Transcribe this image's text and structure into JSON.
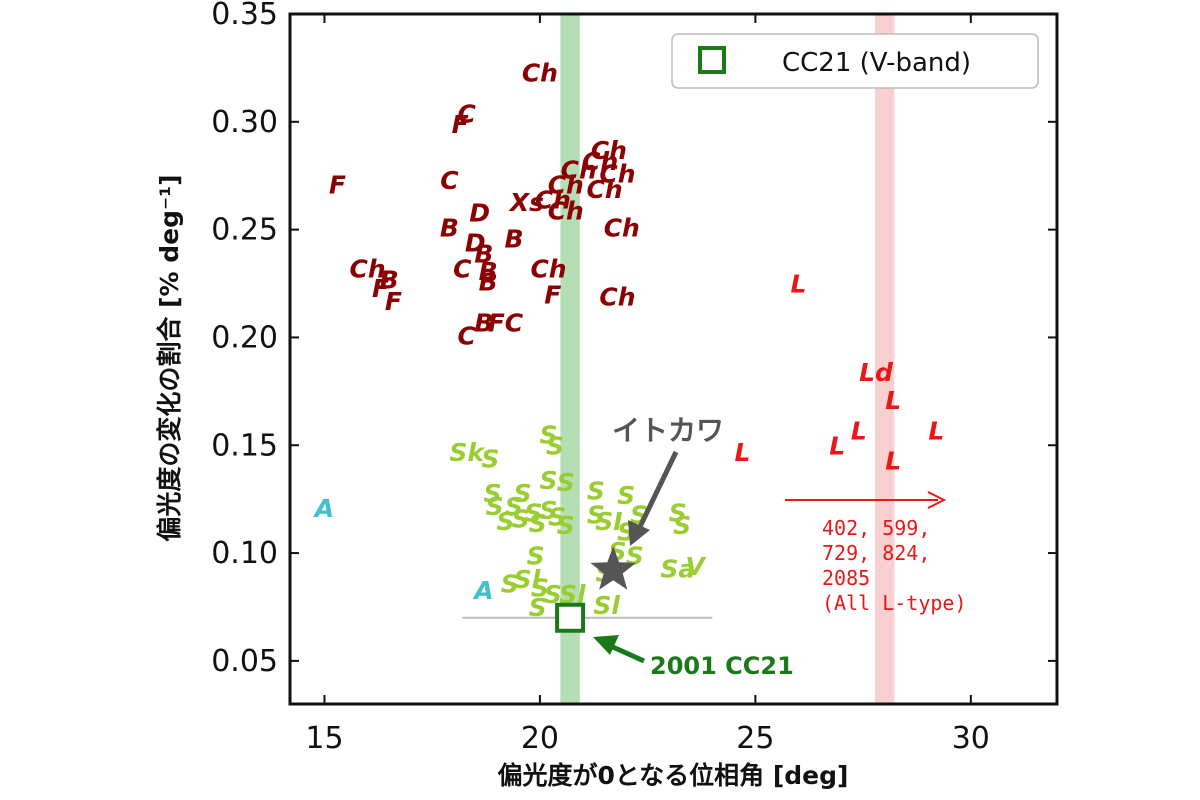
{
  "chart_data": {
    "type": "scatter",
    "title": "",
    "xlabel": "偏光度が0となる位相角 [deg]",
    "ylabel": "偏光度の変化の割合 [% deg⁻¹]",
    "xlim": [
      14.2,
      32
    ],
    "ylim": [
      0.03,
      0.35
    ],
    "xticks": [
      "15",
      "20",
      "25",
      "30"
    ],
    "yticks": [
      "0.05",
      "0.10",
      "0.15",
      "0.20",
      "0.25",
      "0.30",
      "0.35"
    ],
    "grid": false,
    "legend": {
      "placement": "top-right",
      "entries": [
        {
          "label": "CC21 (V-band)"
        }
      ]
    },
    "colors": {
      "c_complex": "#8b0000",
      "s_complex": "#9acd32",
      "a_type": "#40c0c8",
      "l_type": "#e81818",
      "cc21": "#1a7a1a",
      "itokawa": "#555555"
    },
    "bands": [
      {
        "x_center": 20.7,
        "x_width": 0.45,
        "color": "#a8d8a8"
      },
      {
        "x_center": 28.0,
        "x_width": 0.45,
        "color": "#f8c8c8"
      }
    ],
    "hline": {
      "y": 0.07,
      "x_from": 18.2,
      "x_to": 24.0,
      "color": "#bbbbbb"
    },
    "series": [
      {
        "group": "c_complex",
        "points": [
          {
            "x": 20.0,
            "y": 0.322,
            "t": "Ch"
          },
          {
            "x": 18.3,
            "y": 0.303,
            "t": "C"
          },
          {
            "x": 18.15,
            "y": 0.298,
            "t": "F"
          },
          {
            "x": 15.3,
            "y": 0.27,
            "t": "F"
          },
          {
            "x": 17.9,
            "y": 0.272,
            "t": "C"
          },
          {
            "x": 21.6,
            "y": 0.286,
            "t": "Ch"
          },
          {
            "x": 21.4,
            "y": 0.281,
            "t": "Ch"
          },
          {
            "x": 21.8,
            "y": 0.275,
            "t": "Ch"
          },
          {
            "x": 20.9,
            "y": 0.277,
            "t": "Ch"
          },
          {
            "x": 20.6,
            "y": 0.27,
            "t": "Ch"
          },
          {
            "x": 21.5,
            "y": 0.268,
            "t": "Ch"
          },
          {
            "x": 19.7,
            "y": 0.262,
            "t": "Xs"
          },
          {
            "x": 20.3,
            "y": 0.263,
            "t": "Ch"
          },
          {
            "x": 20.6,
            "y": 0.258,
            "t": "Ch"
          },
          {
            "x": 18.6,
            "y": 0.257,
            "t": "D"
          },
          {
            "x": 21.9,
            "y": 0.25,
            "t": "Ch"
          },
          {
            "x": 17.9,
            "y": 0.25,
            "t": "B"
          },
          {
            "x": 19.4,
            "y": 0.245,
            "t": "B"
          },
          {
            "x": 18.5,
            "y": 0.243,
            "t": "D"
          },
          {
            "x": 18.7,
            "y": 0.238,
            "t": "B"
          },
          {
            "x": 16.0,
            "y": 0.231,
            "t": "Ch"
          },
          {
            "x": 16.5,
            "y": 0.226,
            "t": "B"
          },
          {
            "x": 16.3,
            "y": 0.222,
            "t": "F"
          },
          {
            "x": 16.6,
            "y": 0.216,
            "t": "F"
          },
          {
            "x": 18.2,
            "y": 0.231,
            "t": "C"
          },
          {
            "x": 18.8,
            "y": 0.23,
            "t": "B"
          },
          {
            "x": 18.8,
            "y": 0.225,
            "t": "B"
          },
          {
            "x": 20.2,
            "y": 0.231,
            "t": "Ch"
          },
          {
            "x": 20.3,
            "y": 0.219,
            "t": "F"
          },
          {
            "x": 21.8,
            "y": 0.218,
            "t": "Ch"
          },
          {
            "x": 18.7,
            "y": 0.206,
            "t": "B"
          },
          {
            "x": 19.2,
            "y": 0.206,
            "t": "FC"
          },
          {
            "x": 18.3,
            "y": 0.2,
            "t": "C"
          }
        ]
      },
      {
        "group": "l_type",
        "points": [
          {
            "x": 26.0,
            "y": 0.224,
            "t": "L"
          },
          {
            "x": 27.8,
            "y": 0.183,
            "t": "Ld"
          },
          {
            "x": 28.2,
            "y": 0.17,
            "t": "L"
          },
          {
            "x": 27.4,
            "y": 0.156,
            "t": "L"
          },
          {
            "x": 29.2,
            "y": 0.156,
            "t": "L"
          },
          {
            "x": 26.9,
            "y": 0.149,
            "t": "L"
          },
          {
            "x": 28.2,
            "y": 0.142,
            "t": "L"
          },
          {
            "x": 24.7,
            "y": 0.146,
            "t": "L"
          }
        ]
      },
      {
        "group": "a_type",
        "points": [
          {
            "x": 15.0,
            "y": 0.12,
            "t": "A"
          },
          {
            "x": 18.7,
            "y": 0.082,
            "t": "A"
          }
        ]
      },
      {
        "group": "s_complex",
        "points": [
          {
            "x": 20.2,
            "y": 0.154,
            "t": "S"
          },
          {
            "x": 20.35,
            "y": 0.149,
            "t": "S"
          },
          {
            "x": 18.3,
            "y": 0.146,
            "t": "Sk"
          },
          {
            "x": 18.85,
            "y": 0.143,
            "t": "S"
          },
          {
            "x": 20.2,
            "y": 0.133,
            "t": "S"
          },
          {
            "x": 20.6,
            "y": 0.132,
            "t": "S"
          },
          {
            "x": 21.3,
            "y": 0.128,
            "t": "S"
          },
          {
            "x": 22.0,
            "y": 0.126,
            "t": "S"
          },
          {
            "x": 19.6,
            "y": 0.127,
            "t": "S"
          },
          {
            "x": 18.9,
            "y": 0.127,
            "t": "S"
          },
          {
            "x": 18.95,
            "y": 0.121,
            "t": "S"
          },
          {
            "x": 19.4,
            "y": 0.121,
            "t": "S"
          },
          {
            "x": 19.85,
            "y": 0.118,
            "t": "S"
          },
          {
            "x": 20.2,
            "y": 0.119,
            "t": "S"
          },
          {
            "x": 19.2,
            "y": 0.114,
            "t": "S"
          },
          {
            "x": 19.55,
            "y": 0.115,
            "t": "S"
          },
          {
            "x": 19.95,
            "y": 0.113,
            "t": "S"
          },
          {
            "x": 20.4,
            "y": 0.116,
            "t": "S"
          },
          {
            "x": 20.6,
            "y": 0.112,
            "t": "S"
          },
          {
            "x": 21.3,
            "y": 0.117,
            "t": "S"
          },
          {
            "x": 21.6,
            "y": 0.114,
            "t": "SI"
          },
          {
            "x": 22.3,
            "y": 0.117,
            "t": "S"
          },
          {
            "x": 23.2,
            "y": 0.118,
            "t": "S"
          },
          {
            "x": 23.3,
            "y": 0.112,
            "t": "S"
          },
          {
            "x": 22.0,
            "y": 0.109,
            "t": "S"
          },
          {
            "x": 19.9,
            "y": 0.098,
            "t": "S"
          },
          {
            "x": 21.8,
            "y": 0.1,
            "t": "S"
          },
          {
            "x": 22.2,
            "y": 0.098,
            "t": "S"
          },
          {
            "x": 23.2,
            "y": 0.092,
            "t": "Sa"
          },
          {
            "x": 23.6,
            "y": 0.093,
            "t": "V"
          },
          {
            "x": 19.3,
            "y": 0.085,
            "t": "S"
          },
          {
            "x": 19.7,
            "y": 0.087,
            "t": "Sl"
          },
          {
            "x": 21.5,
            "y": 0.09,
            "t": "S"
          },
          {
            "x": 20.0,
            "y": 0.083,
            "t": "S"
          },
          {
            "x": 20.3,
            "y": 0.08,
            "t": "S"
          },
          {
            "x": 20.75,
            "y": 0.08,
            "t": "Sl"
          },
          {
            "x": 19.95,
            "y": 0.074,
            "t": "S"
          },
          {
            "x": 21.55,
            "y": 0.075,
            "t": "Sl"
          }
        ]
      }
    ],
    "cc21_point": {
      "x": 20.7,
      "y": 0.07,
      "label": "2001 CC21"
    },
    "itokawa_point": {
      "x": 21.7,
      "y": 0.092,
      "label": "イトカワ"
    },
    "offscale_note": {
      "lines": [
        "402, 599,",
        "729, 824,",
        "2085",
        "(All L-type)"
      ]
    }
  }
}
